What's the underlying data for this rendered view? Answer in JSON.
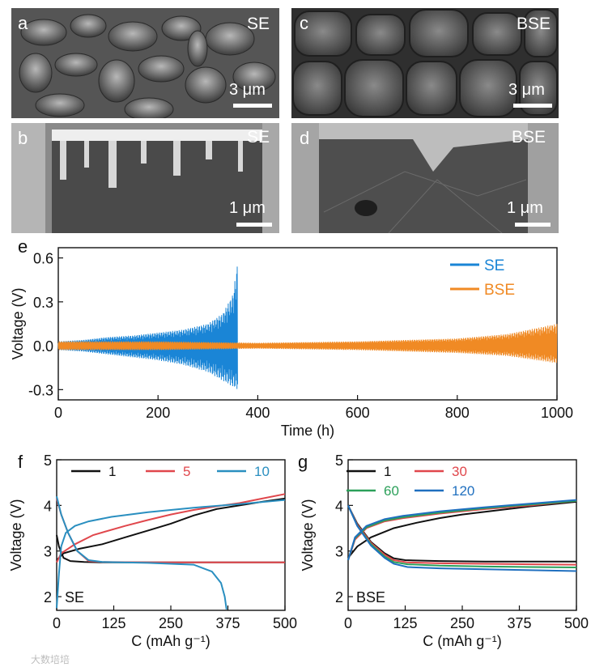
{
  "figure_panels": {
    "a": {
      "label": "a",
      "tag": "SE",
      "scale": "3 μm"
    },
    "b": {
      "label": "b",
      "tag": "SE",
      "scale": "1 μm"
    },
    "c": {
      "label": "c",
      "tag": "BSE",
      "scale": "3 μm"
    },
    "d": {
      "label": "d",
      "tag": "BSE",
      "scale": "1 μm"
    },
    "e": {
      "label": "e"
    },
    "f": {
      "label": "f",
      "annotation": "SE"
    },
    "g": {
      "label": "g",
      "annotation": "BSE"
    }
  },
  "colors": {
    "se_blue": "#1a85d6",
    "bse_orange": "#f08a24",
    "black": "#111111",
    "red": "#e0474c",
    "green": "#2ca05a",
    "blue": "#1f6fbf",
    "teal": "#2a8fc0"
  },
  "watermark": "大数培培",
  "chart_data": [
    {
      "id": "e",
      "type": "line",
      "xlabel": "Time (h)",
      "ylabel": "Voltage (V)",
      "xlim": [
        0,
        1000
      ],
      "ylim": [
        -0.37,
        0.67
      ],
      "xticks": [
        "0",
        "200",
        "400",
        "600",
        "800",
        "1000"
      ],
      "yticks": [
        "-0.3",
        "0.0",
        "0.3",
        "0.6"
      ],
      "legend": [
        "SE",
        "BSE"
      ],
      "series": [
        {
          "name": "SE",
          "t_end": 360,
          "envelope_t": [
            0,
            50,
            100,
            150,
            200,
            250,
            300,
            330,
            350,
            360
          ],
          "envelope_v": [
            0.03,
            0.04,
            0.06,
            0.07,
            0.09,
            0.11,
            0.15,
            0.22,
            0.35,
            0.58
          ],
          "envelope_neg": [
            -0.03,
            -0.04,
            -0.06,
            -0.08,
            -0.1,
            -0.13,
            -0.18,
            -0.24,
            -0.28,
            -0.3
          ]
        },
        {
          "name": "BSE",
          "t_end": 1000,
          "envelope_t": [
            0,
            200,
            400,
            600,
            800,
            900,
            1000
          ],
          "envelope_v": [
            0.03,
            0.03,
            0.02,
            0.03,
            0.05,
            0.08,
            0.15
          ],
          "envelope_neg": [
            -0.03,
            -0.03,
            -0.02,
            -0.03,
            -0.05,
            -0.07,
            -0.12
          ]
        }
      ]
    },
    {
      "id": "f",
      "type": "line",
      "xlabel": "C (mAh g⁻¹)",
      "ylabel": "Voltage (V)",
      "xlim": [
        0,
        500
      ],
      "ylim": [
        1.7,
        5
      ],
      "xticks": [
        "0",
        "125",
        "250",
        "375",
        "500"
      ],
      "yticks": [
        "2",
        "3",
        "4",
        "5"
      ],
      "legend": [
        "1",
        "5",
        "10"
      ],
      "series": [
        {
          "name": "1",
          "color": "black",
          "charge": {
            "x": [
              0,
              15,
              50,
              100,
              150,
              200,
              250,
              300,
              350,
              400,
              450,
              500
            ],
            "y": [
              2.8,
              2.95,
              3.05,
              3.15,
              3.3,
              3.45,
              3.6,
              3.78,
              3.92,
              4.0,
              4.08,
              4.15
            ]
          },
          "discharge": {
            "x": [
              0,
              5,
              15,
              30,
              60,
              100,
              200,
              300,
              400,
              500
            ],
            "y": [
              3.35,
              3.1,
              2.85,
              2.78,
              2.76,
              2.75,
              2.75,
              2.75,
              2.75,
              2.75
            ]
          }
        },
        {
          "name": "5",
          "color": "red",
          "charge": {
            "x": [
              0,
              10,
              40,
              80,
              150,
              200,
              250,
              300,
              350,
              400,
              450,
              500
            ],
            "y": [
              2.75,
              2.95,
              3.15,
              3.35,
              3.55,
              3.68,
              3.8,
              3.9,
              3.98,
              4.05,
              4.15,
              4.25
            ]
          },
          "discharge": {
            "x": [
              0,
              10,
              25,
              45,
              70,
              100,
              200,
              300,
              400,
              500
            ],
            "y": [
              4.15,
              3.8,
              3.4,
              3.0,
              2.78,
              2.76,
              2.75,
              2.75,
              2.75,
              2.75
            ]
          }
        },
        {
          "name": "10",
          "color": "teal",
          "charge": {
            "x": [
              0,
              5,
              10,
              20,
              40,
              70,
              120,
              200,
              300,
              400,
              500
            ],
            "y": [
              1.75,
              2.5,
              3.1,
              3.4,
              3.55,
              3.65,
              3.75,
              3.85,
              3.95,
              4.03,
              4.12
            ]
          },
          "discharge": {
            "x": [
              0,
              10,
              25,
              45,
              70,
              100,
              200,
              300,
              340,
              360,
              368,
              372
            ],
            "y": [
              4.2,
              3.8,
              3.4,
              3.0,
              2.8,
              2.76,
              2.74,
              2.7,
              2.55,
              2.3,
              2.0,
              1.72
            ]
          }
        }
      ]
    },
    {
      "id": "g",
      "type": "line",
      "xlabel": "C (mAh g⁻¹)",
      "ylabel": "Voltage (V)",
      "xlim": [
        0,
        500
      ],
      "ylim": [
        1.7,
        5
      ],
      "xticks": [
        "0",
        "125",
        "250",
        "375",
        "500"
      ],
      "yticks": [
        "2",
        "3",
        "4",
        "5"
      ],
      "legend": [
        "1",
        "30",
        "60",
        "120"
      ],
      "series": [
        {
          "name": "1",
          "color": "black",
          "charge": {
            "x": [
              0,
              20,
              50,
              100,
              150,
              200,
              250,
              300,
              350,
              400,
              450,
              500
            ],
            "y": [
              2.85,
              3.1,
              3.3,
              3.5,
              3.62,
              3.72,
              3.8,
              3.86,
              3.92,
              3.98,
              4.03,
              4.08
            ]
          },
          "discharge": {
            "x": [
              0,
              20,
              50,
              80,
              100,
              125,
              200,
              300,
              400,
              500
            ],
            "y": [
              4.0,
              3.6,
              3.2,
              2.95,
              2.84,
              2.8,
              2.78,
              2.77,
              2.77,
              2.77
            ]
          }
        },
        {
          "name": "30",
          "color": "red",
          "charge": {
            "x": [
              0,
              15,
              40,
              80,
              120,
              200,
              300,
              400,
              500
            ],
            "y": [
              2.8,
              3.25,
              3.5,
              3.65,
              3.72,
              3.82,
              3.92,
              4.0,
              4.1
            ]
          },
          "discharge": {
            "x": [
              0,
              20,
              50,
              80,
              100,
              130,
              200,
              300,
              400,
              500
            ],
            "y": [
              4.0,
              3.58,
              3.18,
              2.92,
              2.8,
              2.75,
              2.73,
              2.72,
              2.71,
              2.7
            ]
          }
        },
        {
          "name": "60",
          "color": "green",
          "charge": {
            "x": [
              0,
              15,
              40,
              80,
              120,
              200,
              300,
              400,
              500
            ],
            "y": [
              2.8,
              3.28,
              3.52,
              3.67,
              3.74,
              3.84,
              3.94,
              4.02,
              4.1
            ]
          },
          "discharge": {
            "x": [
              0,
              20,
              50,
              80,
              100,
              130,
              200,
              300,
              400,
              500
            ],
            "y": [
              4.0,
              3.56,
              3.15,
              2.88,
              2.76,
              2.71,
              2.68,
              2.66,
              2.65,
              2.64
            ]
          }
        },
        {
          "name": "120",
          "color": "blue",
          "charge": {
            "x": [
              0,
              15,
              40,
              80,
              120,
              200,
              300,
              400,
              500
            ],
            "y": [
              2.8,
              3.3,
              3.55,
              3.7,
              3.77,
              3.87,
              3.96,
              4.04,
              4.12
            ]
          },
          "discharge": {
            "x": [
              0,
              20,
              50,
              80,
              100,
              130,
              200,
              300,
              400,
              500
            ],
            "y": [
              4.0,
              3.55,
              3.12,
              2.85,
              2.72,
              2.65,
              2.62,
              2.6,
              2.58,
              2.56
            ]
          }
        }
      ]
    }
  ]
}
